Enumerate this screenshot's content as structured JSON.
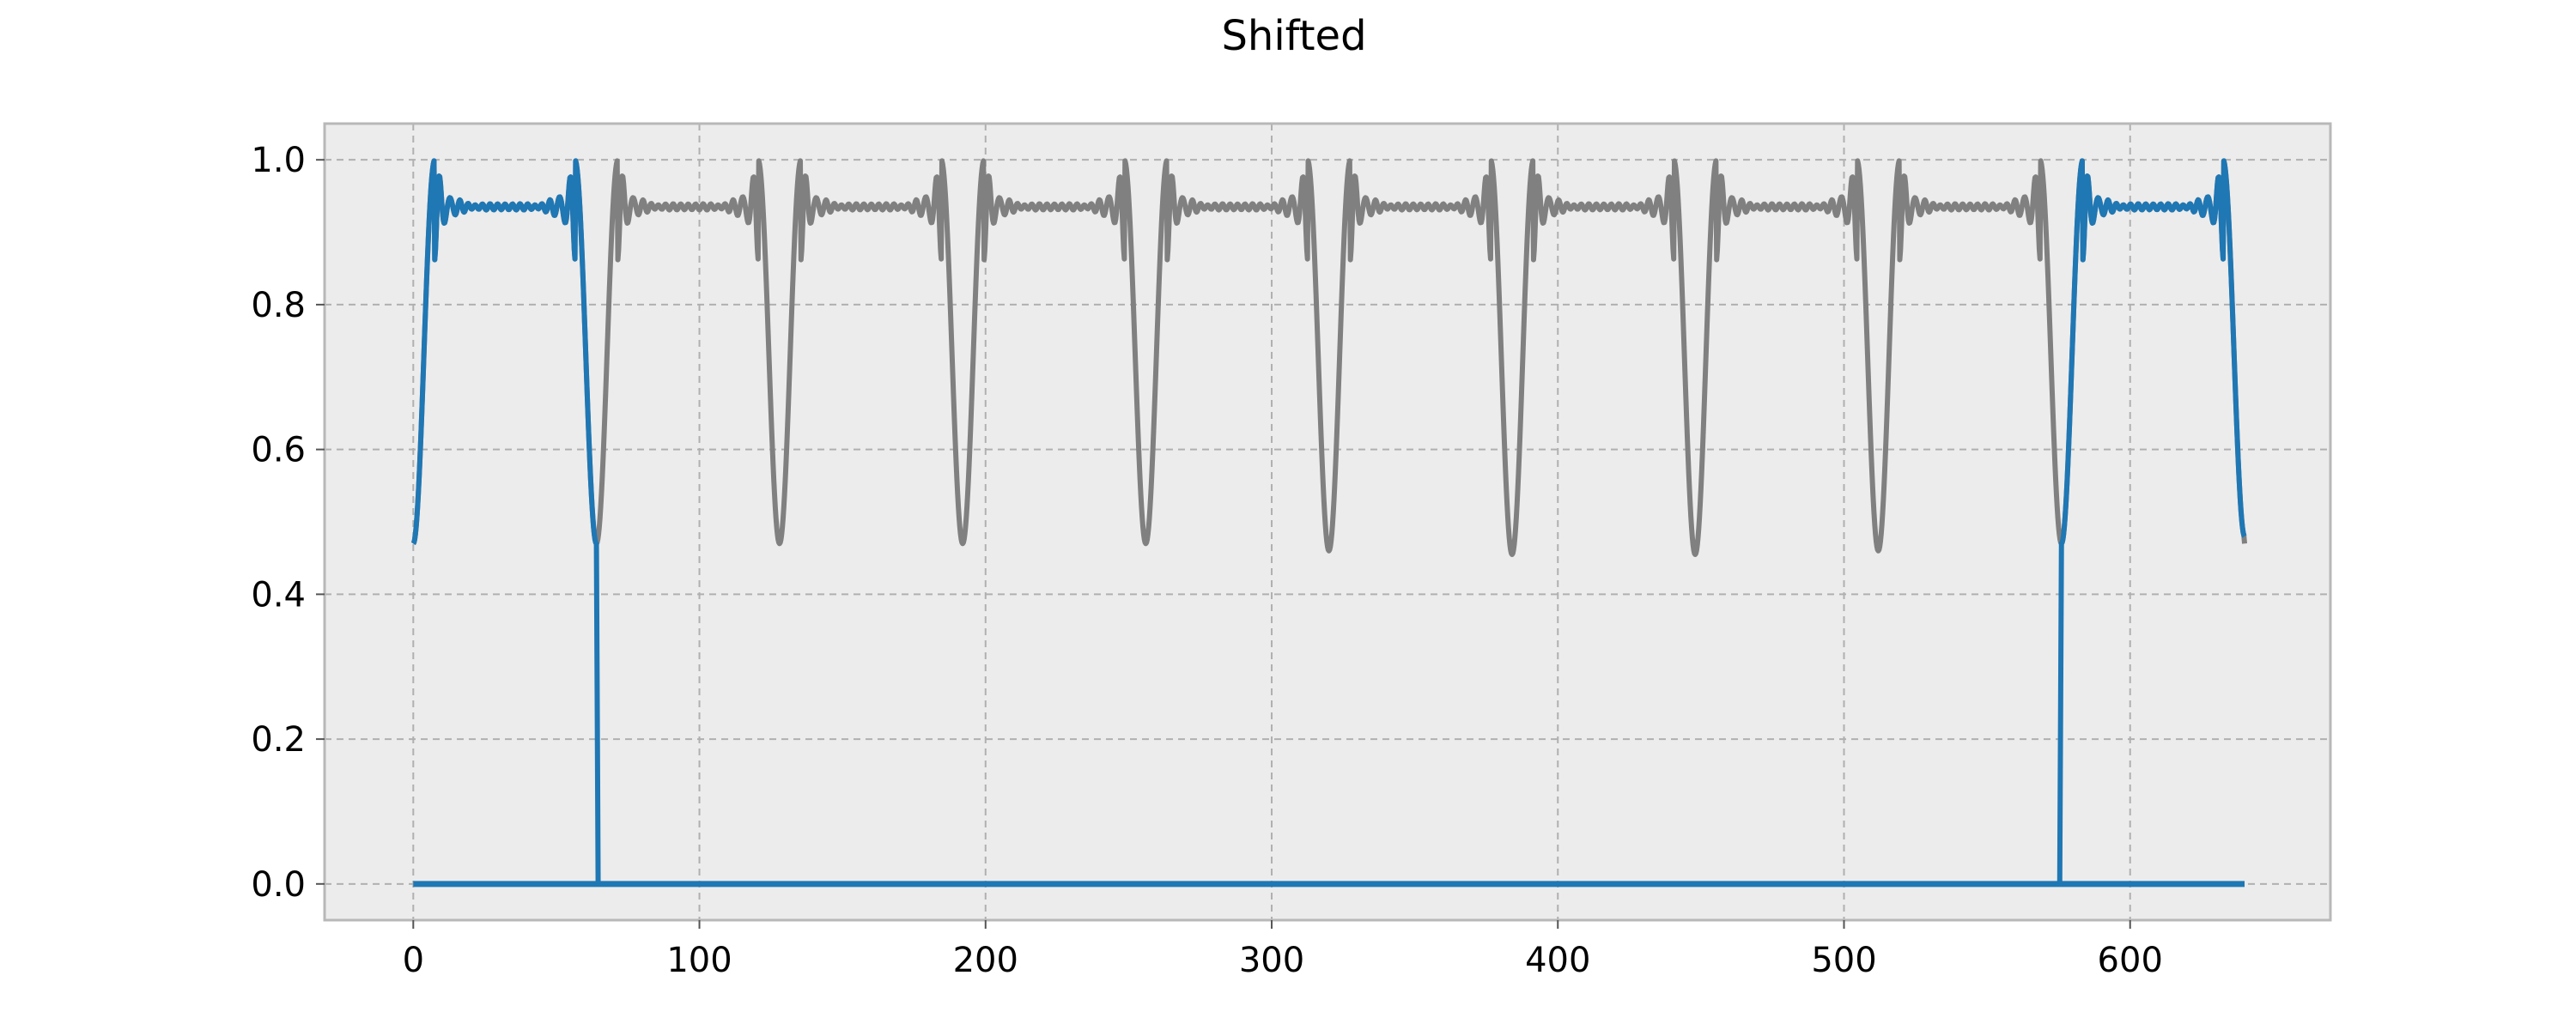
{
  "chart_data": {
    "type": "line",
    "title": "Shifted",
    "xlabel": "",
    "ylabel": "",
    "xlim": [
      -31,
      670
    ],
    "ylim": [
      -0.05,
      1.05
    ],
    "xticks": [
      0,
      100,
      200,
      300,
      400,
      500,
      600
    ],
    "xtick_labels": [
      "0",
      "100",
      "200",
      "300",
      "400",
      "500",
      "600"
    ],
    "yticks": [
      0.0,
      0.2,
      0.4,
      0.6,
      0.8,
      1.0
    ],
    "ytick_labels": [
      "0.0",
      "0.2",
      "0.4",
      "0.6",
      "0.8",
      "1.0"
    ],
    "grid": true,
    "background": "#ececec",
    "series": [
      {
        "color": "#808080",
        "description": "Periodic window-like signal repeating every 64 samples",
        "x_start": 0,
        "x_end": 640,
        "period": 64,
        "dips_at": [
          64,
          128,
          192,
          256,
          320,
          384,
          448,
          512,
          576
        ],
        "min_values": [
          0.47,
          0.47,
          0.47,
          0.47,
          0.46,
          0.455,
          0.455,
          0.46,
          0.47
        ],
        "plateau": 0.935,
        "peak": 1.0
      },
      {
        "color": "#1f77b4",
        "description": "Two signal segments, elsewhere zero",
        "zero_range": [
          0,
          640
        ],
        "segments": [
          {
            "start": 0,
            "end": 64,
            "start_value": 0.47,
            "end_value": 0.47,
            "plateau": 0.935,
            "peak": 1.0
          },
          {
            "start": 576,
            "end": 640,
            "start_value": 0.47,
            "end_value": 0.48,
            "plateau": 0.935,
            "peak": 1.0
          }
        ]
      }
    ]
  }
}
